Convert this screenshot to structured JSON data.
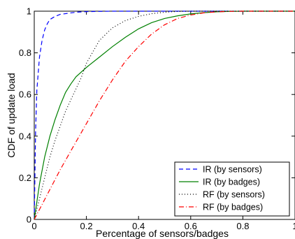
{
  "chart_data": {
    "type": "line",
    "title": "",
    "xlabel": "Percentage of sensors/badges",
    "ylabel": "CDF of update load",
    "xlim": [
      0,
      1
    ],
    "ylim": [
      0,
      1
    ],
    "xticks": [
      0,
      0.2,
      0.4,
      0.6,
      0.8,
      1
    ],
    "xtick_labels": [
      "0",
      "0.2",
      "0.4",
      "0.6",
      "0.8",
      "1"
    ],
    "yticks": [
      0,
      0.2,
      0.4,
      0.6,
      0.8,
      1
    ],
    "ytick_labels": [
      "0",
      "0.2",
      "0.4",
      "0.6",
      "0.8",
      "1"
    ],
    "grid": false,
    "legend_position": "bottom-right",
    "series": [
      {
        "name": "IR (by sensors)",
        "color": "#0000ff",
        "style": "dashed",
        "x": [
          0,
          0.005,
          0.01,
          0.02,
          0.03,
          0.04,
          0.05,
          0.06,
          0.08,
          0.1,
          0.13,
          0.16,
          0.2,
          0.3,
          1
        ],
        "y": [
          0,
          0.42,
          0.62,
          0.78,
          0.86,
          0.91,
          0.94,
          0.96,
          0.975,
          0.985,
          0.99,
          0.995,
          0.998,
          1,
          1
        ]
      },
      {
        "name": "IR (by badges)",
        "color": "#008000",
        "style": "solid",
        "x": [
          0,
          0.02,
          0.04,
          0.06,
          0.08,
          0.1,
          0.12,
          0.14,
          0.16,
          0.2,
          0.25,
          0.3,
          0.35,
          0.4,
          0.45,
          0.5,
          0.55,
          0.6,
          0.65,
          0.7,
          0.75,
          0.8,
          1
        ],
        "y": [
          0,
          0.17,
          0.3,
          0.4,
          0.48,
          0.55,
          0.61,
          0.65,
          0.685,
          0.73,
          0.78,
          0.83,
          0.875,
          0.915,
          0.945,
          0.965,
          0.978,
          0.987,
          0.993,
          0.997,
          0.999,
          1,
          1
        ]
      },
      {
        "name": "RF (by sensors)",
        "color": "#000000",
        "style": "dotted",
        "x": [
          0,
          0.02,
          0.04,
          0.06,
          0.08,
          0.1,
          0.12,
          0.15,
          0.18,
          0.2,
          0.25,
          0.3,
          0.35,
          0.4,
          0.45,
          0.5,
          0.55,
          0.6,
          1
        ],
        "y": [
          0,
          0.1,
          0.2,
          0.3,
          0.38,
          0.45,
          0.52,
          0.6,
          0.68,
          0.75,
          0.86,
          0.92,
          0.955,
          0.975,
          0.988,
          0.995,
          0.999,
          1,
          1
        ]
      },
      {
        "name": "RF (by badges)",
        "color": "#ff0000",
        "style": "dashdot",
        "x": [
          0,
          0.05,
          0.1,
          0.15,
          0.2,
          0.25,
          0.3,
          0.35,
          0.4,
          0.45,
          0.5,
          0.55,
          0.6,
          0.65,
          0.7,
          0.75,
          0.8,
          1
        ],
        "y": [
          0,
          0.12,
          0.24,
          0.35,
          0.46,
          0.57,
          0.67,
          0.76,
          0.83,
          0.89,
          0.935,
          0.965,
          0.982,
          0.992,
          0.997,
          0.999,
          1,
          1
        ]
      }
    ]
  }
}
